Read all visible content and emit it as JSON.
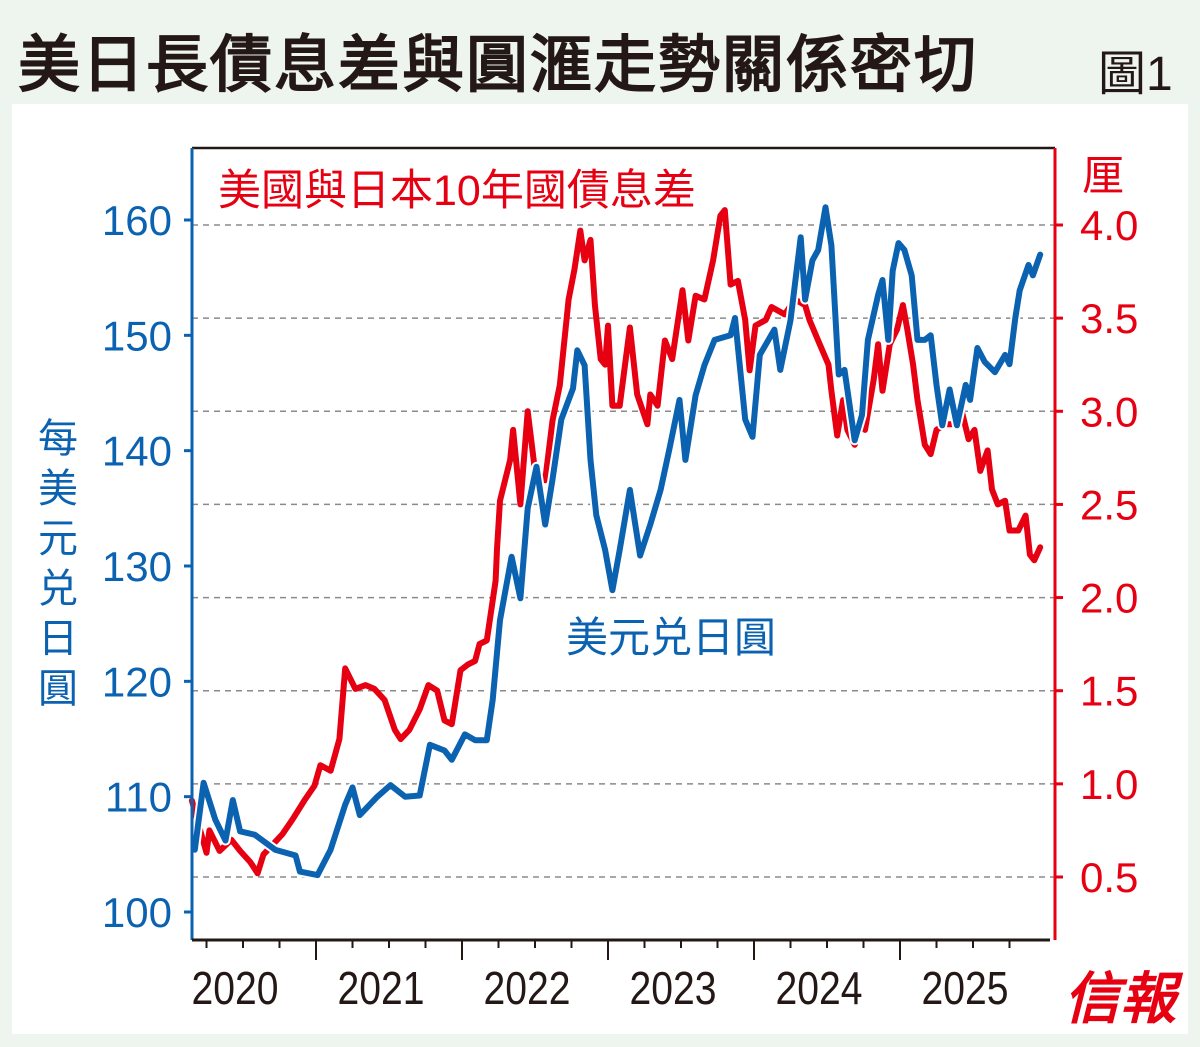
{
  "title": "美日長債息差與圓滙走勢關係密切",
  "figure_label": "圖1",
  "logo_text": "信報",
  "colors": {
    "usdjpy": "#0b62b0",
    "spread": "#e60012",
    "background": "#eef5ee"
  },
  "chart_data": {
    "type": "line",
    "title": "美日長債息差與圓滙走勢關係密切",
    "x_ticks": [
      "2020",
      "2021",
      "2022",
      "2023",
      "2024",
      "2025"
    ],
    "xlim": [
      2020.0,
      2026.0
    ],
    "grid": "dashed horizontal at right-axis ticks",
    "left_axis": {
      "label": "每美元兑日圓",
      "ticks": [
        "100",
        "110",
        "120",
        "130",
        "140",
        "150",
        "160"
      ],
      "ylim": [
        100,
        160
      ]
    },
    "right_axis": {
      "unit": "厘",
      "ticks": [
        "0.5",
        "1.0",
        "1.5",
        "2.0",
        "2.5",
        "3.0",
        "3.5",
        "4.0"
      ],
      "ylim": [
        0.5,
        4.0
      ]
    },
    "series": [
      {
        "name": "美國與日本10年國債息差",
        "axis": "right",
        "color": "#e60012",
        "x": [
          2020.15,
          2020.25,
          2020.27,
          2020.34,
          2020.42,
          2020.48,
          2020.55,
          2020.6,
          2020.64,
          2020.77,
          2020.84,
          2020.92,
          2020.99,
          2021.03,
          2021.1,
          2021.16,
          2021.2,
          2021.27,
          2021.34,
          2021.4,
          2021.47,
          2021.54,
          2021.58,
          2021.64,
          2021.71,
          2021.77,
          2021.83,
          2021.88,
          2021.93,
          2021.99,
          2022.04,
          2022.09,
          2022.12,
          2022.17,
          2022.23,
          2022.24,
          2022.26,
          2022.33,
          2022.35,
          2022.4,
          2022.45,
          2022.5,
          2022.57,
          2022.62,
          2022.67,
          2022.73,
          2022.77,
          2022.81,
          2022.84,
          2022.88,
          2022.91,
          2022.95,
          2022.98,
          2023.0,
          2023.03,
          2023.08,
          2023.15,
          2023.2,
          2023.27,
          2023.29,
          2023.34,
          2023.39,
          2023.44,
          2023.51,
          2023.55,
          2023.6,
          2023.66,
          2023.72,
          2023.77,
          2023.8,
          2023.84,
          2023.89,
          2023.94,
          2023.97,
          2024.01,
          2024.08,
          2024.12,
          2024.21,
          2024.28,
          2024.35,
          2024.38,
          2024.45,
          2024.51,
          2024.53,
          2024.57,
          2024.61,
          2024.64,
          2024.69,
          2024.73,
          2024.76,
          2024.82,
          2024.85,
          2024.88,
          2024.93,
          2024.98,
          2025.02,
          2025.05,
          2025.09,
          2025.12,
          2025.17,
          2025.21,
          2025.25,
          2025.31,
          2025.38,
          2025.42,
          2025.47,
          2025.51,
          2025.55,
          2025.6,
          2025.63,
          2025.67,
          2025.72,
          2025.75,
          2025.81,
          2025.86,
          2025.89,
          2025.92,
          2025.96
        ],
        "y": [
          0.91,
          0.63,
          0.75,
          0.64,
          0.7,
          0.64,
          0.58,
          0.52,
          0.62,
          0.73,
          0.81,
          0.91,
          0.99,
          1.1,
          1.07,
          1.24,
          1.62,
          1.51,
          1.53,
          1.51,
          1.45,
          1.29,
          1.24,
          1.29,
          1.4,
          1.53,
          1.5,
          1.34,
          1.32,
          1.61,
          1.64,
          1.66,
          1.75,
          1.77,
          2.09,
          2.26,
          2.52,
          2.74,
          2.9,
          2.5,
          3.0,
          2.68,
          2.63,
          2.95,
          3.14,
          3.6,
          3.76,
          3.97,
          3.81,
          3.92,
          3.57,
          3.28,
          3.25,
          3.46,
          3.03,
          3.03,
          3.45,
          3.09,
          2.93,
          3.09,
          3.03,
          3.38,
          3.28,
          3.65,
          3.38,
          3.62,
          3.6,
          3.81,
          4.05,
          4.08,
          3.68,
          3.7,
          3.49,
          3.22,
          3.46,
          3.49,
          3.56,
          3.52,
          3.6,
          3.57,
          3.49,
          3.36,
          3.25,
          3.11,
          2.87,
          3.06,
          2.9,
          2.82,
          2.93,
          2.9,
          3.17,
          3.36,
          3.11,
          3.36,
          3.44,
          3.57,
          3.44,
          3.25,
          3.06,
          2.82,
          2.77,
          2.9,
          2.93,
          2.93,
          3.01,
          2.85,
          2.9,
          2.68,
          2.79,
          2.58,
          2.5,
          2.52,
          2.36,
          2.36,
          2.44,
          2.23,
          2.2,
          2.27
        ]
      },
      {
        "name": "美元兑日圓",
        "axis": "left",
        "color": "#0b62b0",
        "x": [
          2020.17,
          2020.23,
          2020.31,
          2020.38,
          2020.43,
          2020.48,
          2020.58,
          2020.72,
          2020.86,
          2020.89,
          2021.01,
          2021.1,
          2021.2,
          2021.25,
          2021.3,
          2021.42,
          2021.51,
          2021.61,
          2021.71,
          2021.78,
          2021.88,
          2021.93,
          2022.02,
          2022.09,
          2022.17,
          2022.21,
          2022.26,
          2022.34,
          2022.4,
          2022.45,
          2022.51,
          2022.57,
          2022.62,
          2022.68,
          2022.76,
          2022.79,
          2022.84,
          2022.88,
          2022.92,
          2022.98,
          2023.03,
          2023.08,
          2023.15,
          2023.22,
          2023.29,
          2023.36,
          2023.42,
          2023.49,
          2023.53,
          2023.6,
          2023.66,
          2023.73,
          2023.84,
          2023.87,
          2023.94,
          2023.99,
          2024.04,
          2024.14,
          2024.18,
          2024.25,
          2024.32,
          2024.35,
          2024.4,
          2024.44,
          2024.49,
          2024.53,
          2024.58,
          2024.62,
          2024.69,
          2024.74,
          2024.78,
          2024.85,
          2024.88,
          2024.92,
          2024.95,
          2024.99,
          2025.03,
          2025.08,
          2025.12,
          2025.17,
          2025.21,
          2025.25,
          2025.29,
          2025.34,
          2025.39,
          2025.45,
          2025.48,
          2025.53,
          2025.58,
          2025.65,
          2025.72,
          2025.75,
          2025.79,
          2025.82,
          2025.88,
          2025.91,
          2025.96
        ],
        "y": [
          105.4,
          111.2,
          108.0,
          106.2,
          109.7,
          107.0,
          106.7,
          105.4,
          104.9,
          103.5,
          103.2,
          105.4,
          109.3,
          110.8,
          108.4,
          110.0,
          111.0,
          110.0,
          110.1,
          114.5,
          114.0,
          113.2,
          115.4,
          114.9,
          114.9,
          118.4,
          125.3,
          130.8,
          127.2,
          135.0,
          138.6,
          133.6,
          137.5,
          142.7,
          145.4,
          148.7,
          147.4,
          139.2,
          134.4,
          131.4,
          127.9,
          131.4,
          136.6,
          130.9,
          133.6,
          136.6,
          140.1,
          144.4,
          139.2,
          144.8,
          147.4,
          149.6,
          150.0,
          151.5,
          142.7,
          141.2,
          148.3,
          150.5,
          147.0,
          151.3,
          158.5,
          153.1,
          156.5,
          157.4,
          161.1,
          157.8,
          146.6,
          147.0,
          140.9,
          143.1,
          149.6,
          153.5,
          154.8,
          149.6,
          155.6,
          158.0,
          157.4,
          155.2,
          149.6,
          149.6,
          150.0,
          145.7,
          142.2,
          145.3,
          142.2,
          145.7,
          144.4,
          148.9,
          147.7,
          146.8,
          148.3,
          147.5,
          151.5,
          153.9,
          156.1,
          155.2,
          157.0
        ]
      }
    ]
  }
}
